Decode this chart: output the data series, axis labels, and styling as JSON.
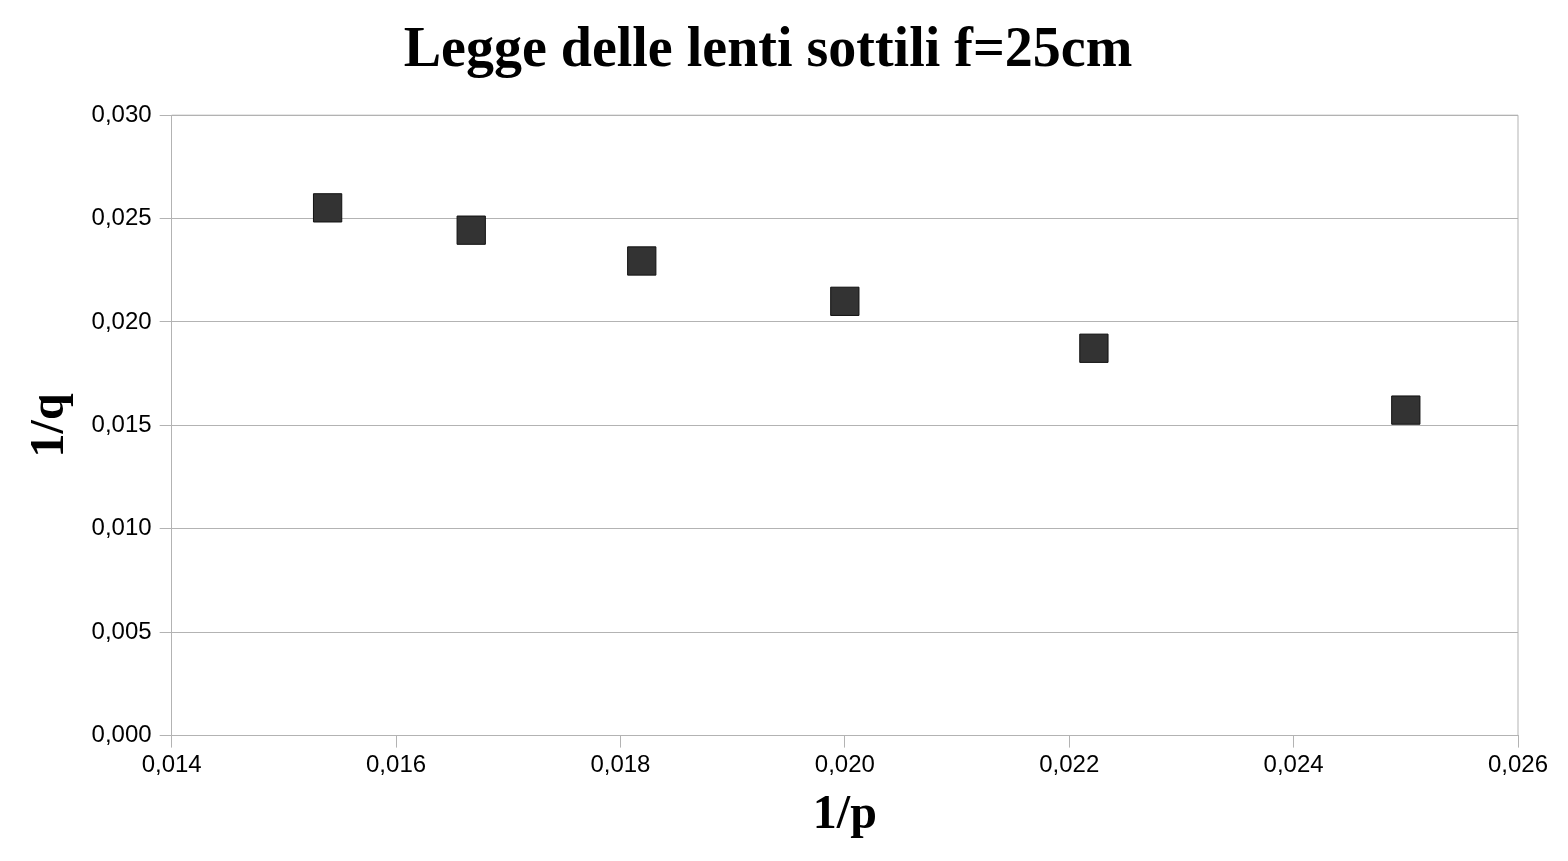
{
  "chart_data": {
    "type": "scatter",
    "title": "Legge delle lenti sottili f=25cm",
    "xlabel": "1/p",
    "ylabel": "1/q",
    "x": [
      0.01539,
      0.01667,
      0.01819,
      0.02,
      0.02222,
      0.025
    ],
    "values": [
      0.02552,
      0.02444,
      0.02295,
      0.021,
      0.01873,
      0.01574
    ],
    "color": "#333333",
    "marker": "square",
    "grid": "y",
    "legend": false,
    "xlim": [
      0.014,
      0.026
    ],
    "xticks": [
      {
        "value": 0.014,
        "label": "0,014"
      },
      {
        "value": 0.016,
        "label": "0,016"
      },
      {
        "value": 0.018,
        "label": "0,018"
      },
      {
        "value": 0.02,
        "label": "0,020"
      },
      {
        "value": 0.022,
        "label": "0,022"
      },
      {
        "value": 0.024,
        "label": "0,024"
      },
      {
        "value": 0.026,
        "label": "0,026"
      }
    ],
    "ylim": [
      0,
      0.03
    ],
    "yticks": [
      {
        "value": 0,
        "label": "0,000"
      },
      {
        "value": 0.005,
        "label": "0,005"
      },
      {
        "value": 0.01,
        "label": "0,010"
      },
      {
        "value": 0.015,
        "label": "0,015"
      },
      {
        "value": 0.02,
        "label": "0,020"
      },
      {
        "value": 0.025,
        "label": "0,025"
      },
      {
        "value": 0.03,
        "label": "0,030"
      }
    ]
  }
}
